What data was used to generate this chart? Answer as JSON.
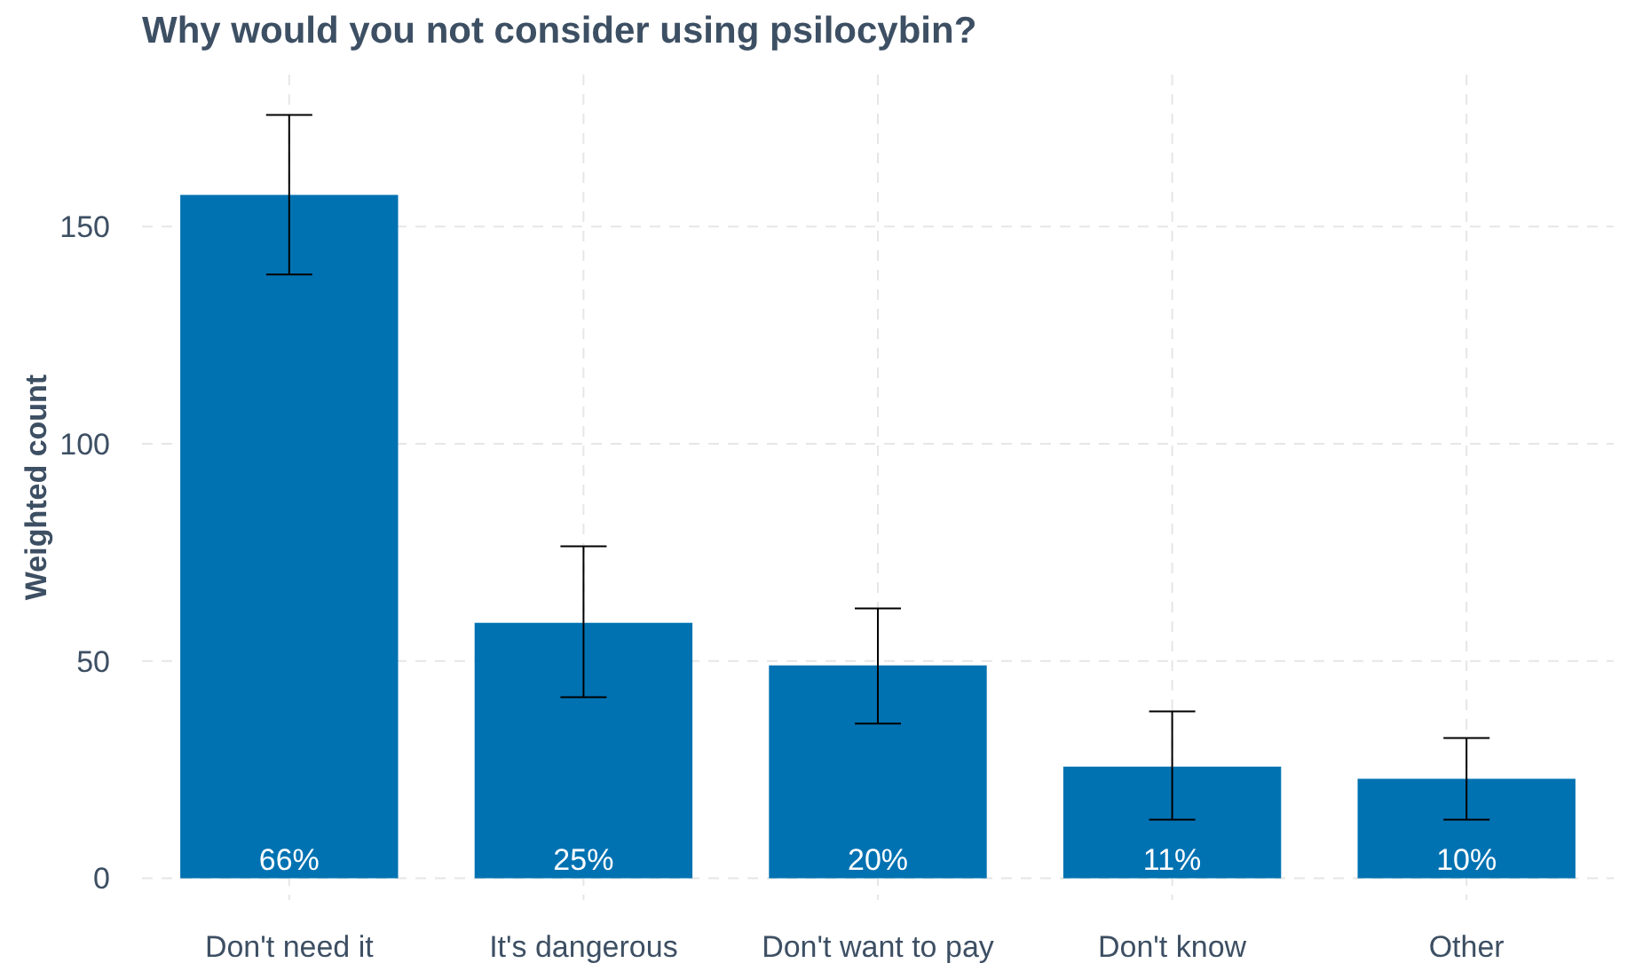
{
  "chart_data": {
    "type": "bar",
    "title": "Why would you not consider using psilocybin?",
    "ylabel": "Weighted count",
    "categories": [
      "Don't need it",
      "It's dangerous",
      "Don't want to pay",
      "Don't know",
      "Other"
    ],
    "values": [
      157.3,
      58.8,
      49,
      25.7,
      22.9
    ],
    "errors": [
      [
        139,
        175.7
      ],
      [
        41.7,
        76.4
      ],
      [
        35.6,
        62.1
      ],
      [
        13.5,
        38.4
      ],
      [
        13.5,
        32.3
      ]
    ],
    "annotations": [
      {
        "text": "66%",
        "x": "Don't need it",
        "y": 0
      },
      {
        "text": "25%",
        "x": "It's dangerous",
        "y": 0
      },
      {
        "text": "20%",
        "x": "Don't want to pay",
        "y": 0
      },
      {
        "text": "11%",
        "x": "Don't know",
        "y": 0
      },
      {
        "text": "10%",
        "x": "Other",
        "y": 0
      }
    ],
    "color": "#0072b2",
    "ylim": [
      -5,
      185
    ],
    "yticks": [
      0,
      50,
      100,
      150
    ],
    "grid": true
  }
}
